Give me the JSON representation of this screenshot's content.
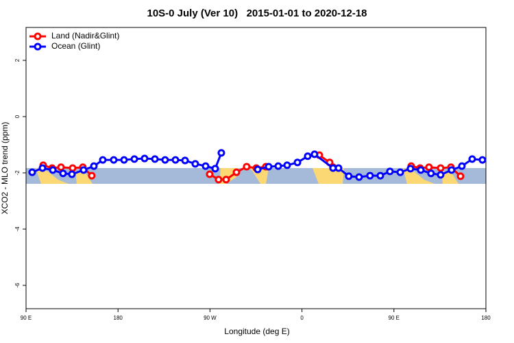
{
  "chart_data": {
    "type": "line",
    "title": "10S-0 July (Ver 10)   2015-01-01 to 2020-12-18",
    "x_label": "Longitude (deg E)",
    "y_label": "XCO2 - MLO trend (ppm)",
    "xlim": [
      90,
      540
    ],
    "ylim": [
      -6.83,
      3.17
    ],
    "xticks": [
      {
        "value": 90,
        "label": "90 E"
      },
      180,
      {
        "value": 270,
        "label": "90 W"
      },
      {
        "value": 360,
        "label": "0"
      },
      {
        "value": 450,
        "label": "90 E"
      },
      {
        "value": 540,
        "label": "180"
      }
    ],
    "yticks": [
      2,
      0,
      -2,
      -4,
      -6
    ],
    "legend": "topleft",
    "series": [
      {
        "name": "Land (Nadir&Glint)",
        "color": "#ff0000",
        "x": [
          106.8,
          115.5,
          124.2,
          135.6,
          145.6,
          154.3,
          null,
          269.7,
          278.4,
          285.8,
          295.9,
          305.9,
          315.3,
          324.7,
          null,
          377.0,
          387.1,
          390.4,
          null,
          466.9,
          475.6,
          484.3,
          495.7,
          505.8,
          515.2
        ],
        "values": [
          -1.73,
          -1.83,
          -1.8,
          -1.83,
          -1.8,
          -2.1,
          null,
          -2.05,
          -2.24,
          -2.24,
          -1.98,
          -1.78,
          -1.83,
          -1.78,
          null,
          -1.37,
          -1.63,
          -1.8,
          null,
          -1.76,
          -1.83,
          -1.8,
          -1.83,
          -1.8,
          -2.12
        ]
      },
      {
        "name": "Ocean (Glint)",
        "color": "#0000ff",
        "x": [
          96.0,
          106.1,
          116.2,
          126.2,
          134.9,
          146.3,
          156.4,
          165.1,
          175.8,
          185.9,
          196.0,
          206.0,
          216.1,
          226.1,
          236.2,
          245.6,
          255.6,
          265.7,
          275.1,
          281.1,
          null,
          316.7,
          327.4,
          336.8,
          345.5,
          355.6,
          365.6,
          372.3,
          390.4,
          395.8,
          405.8,
          415.9,
          426.6,
          436.7,
          446.1,
          456.2,
          466.2,
          476.3,
          486.3,
          495.7,
          506.4,
          516.5,
          526.6,
          536.6
        ],
        "values": [
          -1.98,
          -1.83,
          -1.9,
          -2.02,
          -2.05,
          -1.9,
          -1.76,
          -1.54,
          -1.54,
          -1.54,
          -1.51,
          -1.49,
          -1.51,
          -1.54,
          -1.54,
          -1.56,
          -1.68,
          -1.76,
          -1.85,
          -1.29,
          null,
          -1.88,
          -1.78,
          -1.76,
          -1.73,
          -1.63,
          -1.41,
          -1.34,
          -1.83,
          -1.83,
          -2.12,
          -2.15,
          -2.1,
          -2.1,
          -1.95,
          -1.98,
          -1.85,
          -1.9,
          -2.02,
          -2.07,
          -1.9,
          -1.76,
          -1.51,
          -1.54
        ]
      }
    ]
  }
}
